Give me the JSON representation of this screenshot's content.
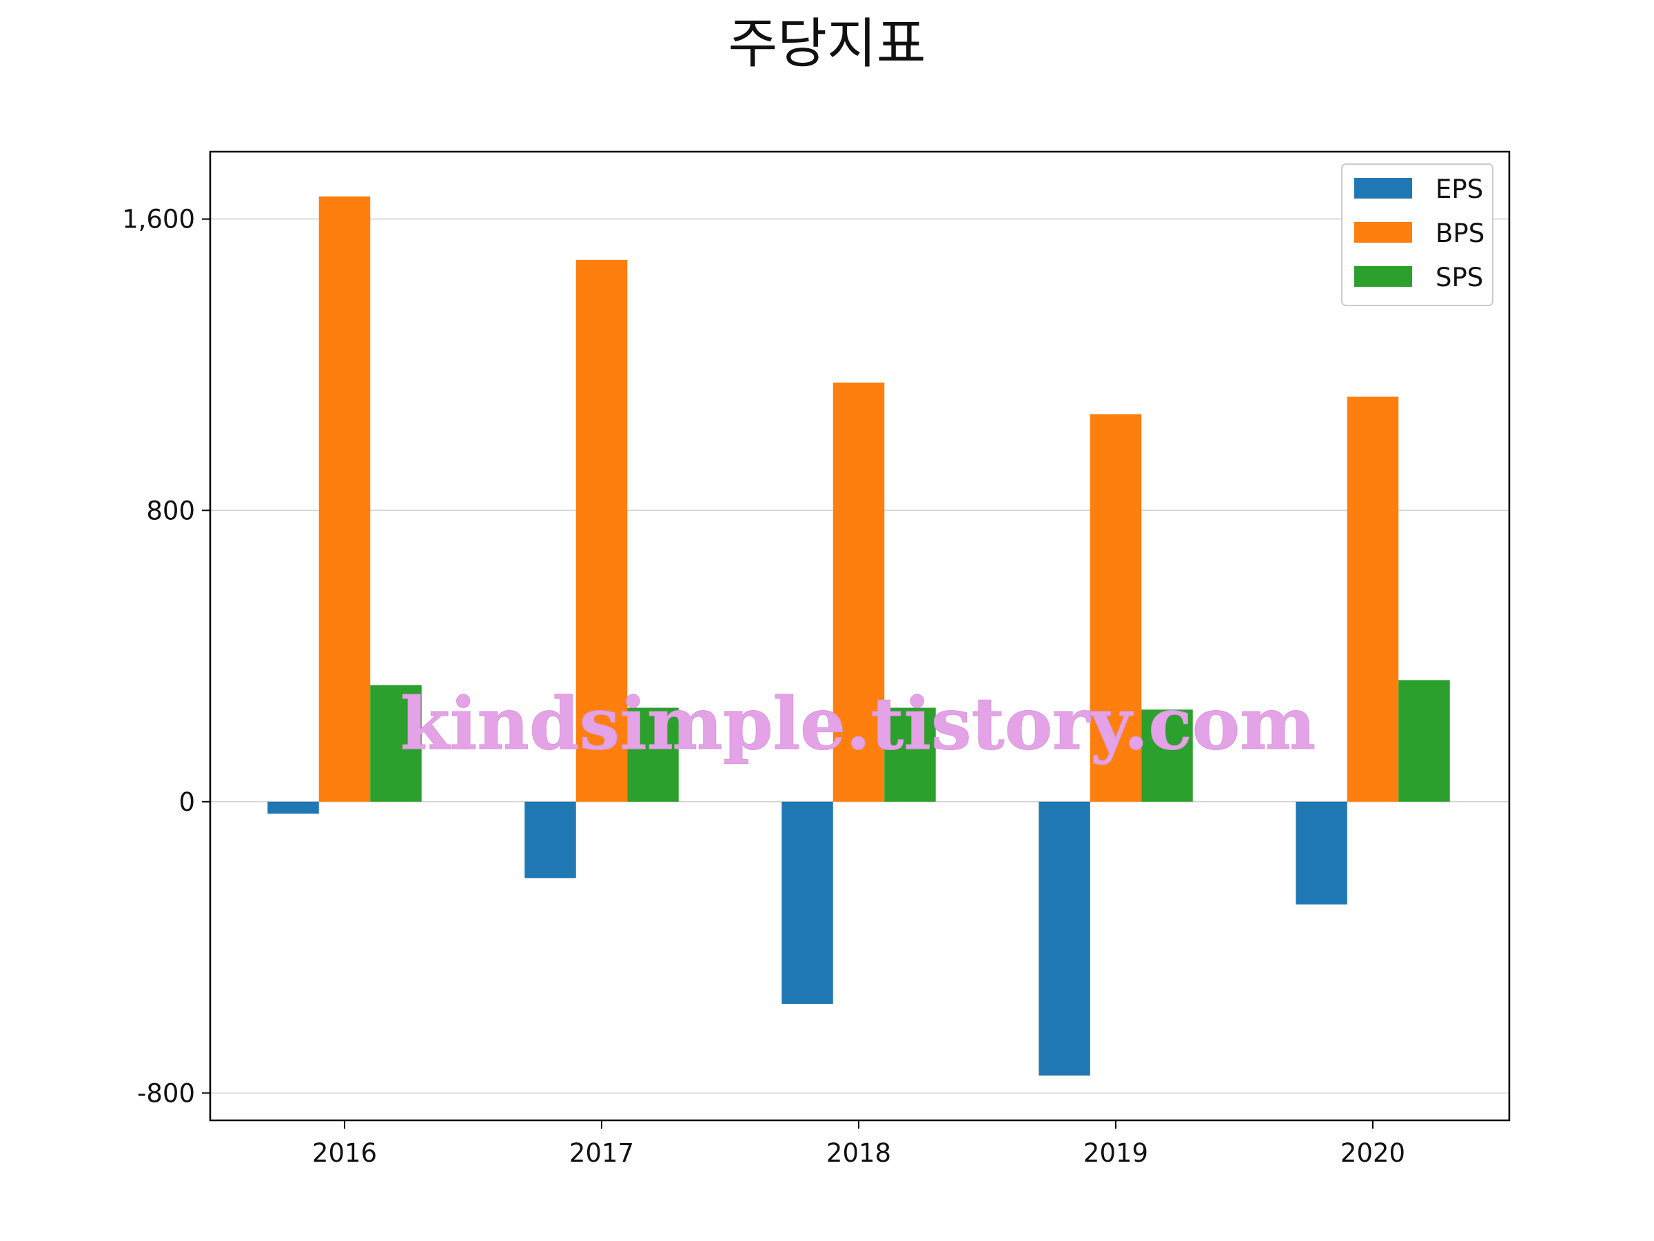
{
  "chart_data": {
    "type": "bar",
    "title": "주당지표",
    "xlabel": "",
    "ylabel": "",
    "categories": [
      "2016",
      "2017",
      "2018",
      "2019",
      "2020"
    ],
    "series": [
      {
        "name": "EPS",
        "color": "#1f77b4",
        "values": [
          -33,
          -210,
          -555,
          -752,
          -282
        ]
      },
      {
        "name": "BPS",
        "color": "#ff7f0e",
        "values": [
          1662,
          1488,
          1151,
          1064,
          1112
        ]
      },
      {
        "name": "SPS",
        "color": "#2ca02c",
        "values": [
          320,
          258,
          258,
          253,
          334
        ]
      }
    ],
    "ylim": [
      -875,
      1785
    ],
    "yticks": [
      -800,
      0,
      800,
      1600
    ],
    "ytick_labels": [
      "-800",
      "0",
      "800",
      "1,600"
    ],
    "grid": true,
    "legend_position": "top-right",
    "watermark": "kindsimple.tistory.com"
  }
}
